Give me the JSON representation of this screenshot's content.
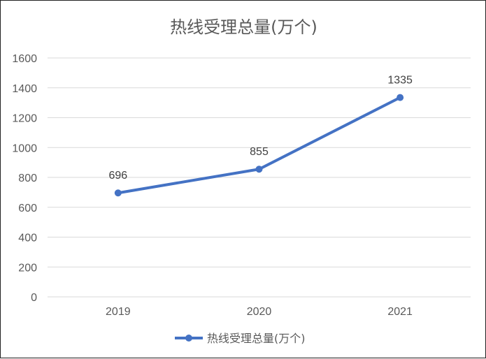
{
  "chart_data": {
    "type": "line",
    "title": "热线受理总量(万个)",
    "xlabel": "",
    "ylabel": "",
    "categories": [
      "2019",
      "2020",
      "2021"
    ],
    "series": [
      {
        "name": "热线受理总量(万个)",
        "values": [
          696,
          855,
          1335
        ],
        "color": "#4472C4"
      }
    ],
    "y_ticks": [
      "0",
      "200",
      "400",
      "600",
      "800",
      "1000",
      "1200",
      "1400",
      "1600"
    ],
    "data_labels": [
      "696",
      "855",
      "1335"
    ],
    "ylim": [
      0,
      1600
    ],
    "grid": true,
    "legend_position": "bottom",
    "colors": {
      "series": "#4472C4",
      "grid": "#D9D9D9",
      "text": "#595959",
      "border": "#222222"
    }
  }
}
